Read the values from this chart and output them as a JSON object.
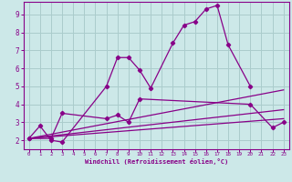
{
  "bg_color": "#cce8e8",
  "grid_color": "#aacccc",
  "line_color": "#880088",
  "xlabel": "Windchill (Refroidissement éolien,°C)",
  "xlim": [
    -0.5,
    23.5
  ],
  "ylim": [
    1.5,
    9.7
  ],
  "yticks": [
    2,
    3,
    4,
    5,
    6,
    7,
    8,
    9
  ],
  "xticks": [
    0,
    1,
    2,
    3,
    4,
    5,
    6,
    7,
    8,
    9,
    10,
    11,
    12,
    13,
    14,
    15,
    16,
    17,
    18,
    19,
    20,
    21,
    22,
    23
  ],
  "series": [
    {
      "x": [
        0,
        1,
        2,
        3,
        7,
        8,
        9,
        10,
        11,
        13,
        14,
        15,
        16,
        17,
        18,
        20
      ],
      "y": [
        2.1,
        2.8,
        2.0,
        1.9,
        5.0,
        6.6,
        6.6,
        5.9,
        4.9,
        7.4,
        8.4,
        8.6,
        9.3,
        9.5,
        7.3,
        5.0
      ]
    },
    {
      "x": [
        0,
        2,
        3,
        7,
        8,
        9,
        10,
        20,
        22,
        23
      ],
      "y": [
        2.1,
        2.1,
        3.5,
        3.2,
        3.4,
        3.0,
        4.3,
        4.0,
        2.7,
        3.0
      ]
    },
    {
      "x": [
        0,
        23
      ],
      "y": [
        2.1,
        4.8
      ]
    },
    {
      "x": [
        0,
        23
      ],
      "y": [
        2.1,
        3.7
      ]
    },
    {
      "x": [
        0,
        23
      ],
      "y": [
        2.1,
        3.2
      ]
    }
  ]
}
